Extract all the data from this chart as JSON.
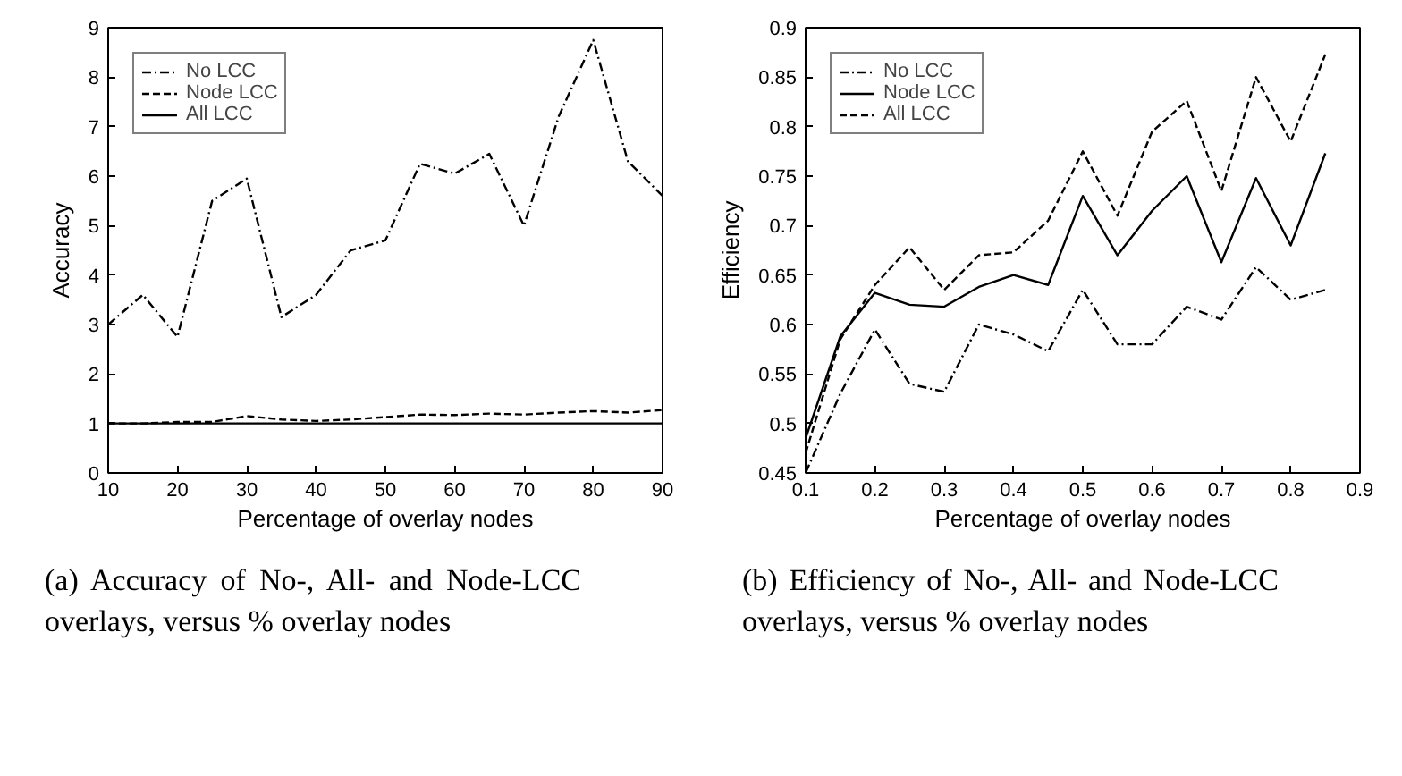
{
  "chart_data": [
    {
      "type": "line",
      "xlabel": "Percentage of overlay nodes",
      "ylabel": "Accuracy",
      "annotations": [
        "(a) Accuracy of No-, All- and Node-LCC overlays, versus % overlay nodes"
      ],
      "x": [
        10,
        15,
        20,
        25,
        30,
        35,
        40,
        45,
        50,
        55,
        60,
        65,
        70,
        75,
        80,
        85,
        90
      ],
      "xlim": [
        10,
        90
      ],
      "xticks": [
        10,
        20,
        30,
        40,
        50,
        60,
        70,
        80,
        90
      ],
      "ylim": [
        0,
        9
      ],
      "yticks": [
        0,
        1,
        2,
        3,
        4,
        5,
        6,
        7,
        8,
        9
      ],
      "grid": false,
      "legend": "top left",
      "marker": "none",
      "series": [
        {
          "name": "No LCC",
          "color": "#000000",
          "line_style": "dashdot",
          "values": [
            3.0,
            3.6,
            2.75,
            5.5,
            5.95,
            3.15,
            3.6,
            4.5,
            4.7,
            6.25,
            6.05,
            6.45,
            5.0,
            7.2,
            8.75,
            6.3,
            5.6
          ]
        },
        {
          "name": "Node LCC",
          "color": "#000000",
          "line_style": "dashed",
          "values": [
            1.0,
            1.0,
            1.03,
            1.03,
            1.15,
            1.08,
            1.05,
            1.08,
            1.13,
            1.18,
            1.17,
            1.2,
            1.18,
            1.22,
            1.25,
            1.22,
            1.27
          ]
        },
        {
          "name": "All LCC",
          "color": "#000000",
          "line_style": "solid",
          "values": [
            1,
            1,
            1,
            1,
            1,
            1,
            1,
            1,
            1,
            1,
            1,
            1,
            1,
            1,
            1,
            1,
            1
          ]
        }
      ]
    },
    {
      "type": "line",
      "xlabel": "Percentage of overlay nodes",
      "ylabel": "Efficiency",
      "annotations": [
        "(b) Efficiency of No-, All- and Node-LCC overlays, versus % overlay nodes"
      ],
      "x": [
        0.1,
        0.15,
        0.2,
        0.25,
        0.3,
        0.35,
        0.4,
        0.45,
        0.5,
        0.55,
        0.6,
        0.65,
        0.7,
        0.75,
        0.8,
        0.85
      ],
      "xlim": [
        0.1,
        0.9
      ],
      "xticks": [
        0.1,
        0.2,
        0.3,
        0.4,
        0.5,
        0.6,
        0.7,
        0.8,
        0.9
      ],
      "ylim": [
        0.45,
        0.9
      ],
      "yticks": [
        0.45,
        0.5,
        0.55,
        0.6,
        0.65,
        0.7,
        0.75,
        0.8,
        0.85,
        0.9
      ],
      "grid": false,
      "legend": "top left",
      "marker": "none",
      "series": [
        {
          "name": "No LCC",
          "color": "#000000",
          "line_style": "dashdot",
          "values": [
            0.45,
            0.53,
            0.595,
            0.54,
            0.532,
            0.6,
            0.59,
            0.573,
            0.635,
            0.58,
            0.58,
            0.618,
            0.605,
            0.658,
            0.625,
            0.635
          ]
        },
        {
          "name": "Node LCC",
          "color": "#000000",
          "line_style": "solid",
          "values": [
            0.485,
            0.588,
            0.632,
            0.62,
            0.618,
            0.638,
            0.65,
            0.64,
            0.73,
            0.67,
            0.715,
            0.75,
            0.663,
            0.748,
            0.68,
            0.773
          ]
        },
        {
          "name": "All LCC",
          "color": "#000000",
          "line_style": "dashed",
          "values": [
            0.47,
            0.585,
            0.64,
            0.678,
            0.635,
            0.67,
            0.673,
            0.705,
            0.775,
            0.71,
            0.795,
            0.826,
            0.735,
            0.85,
            0.785,
            0.873
          ]
        }
      ]
    }
  ]
}
